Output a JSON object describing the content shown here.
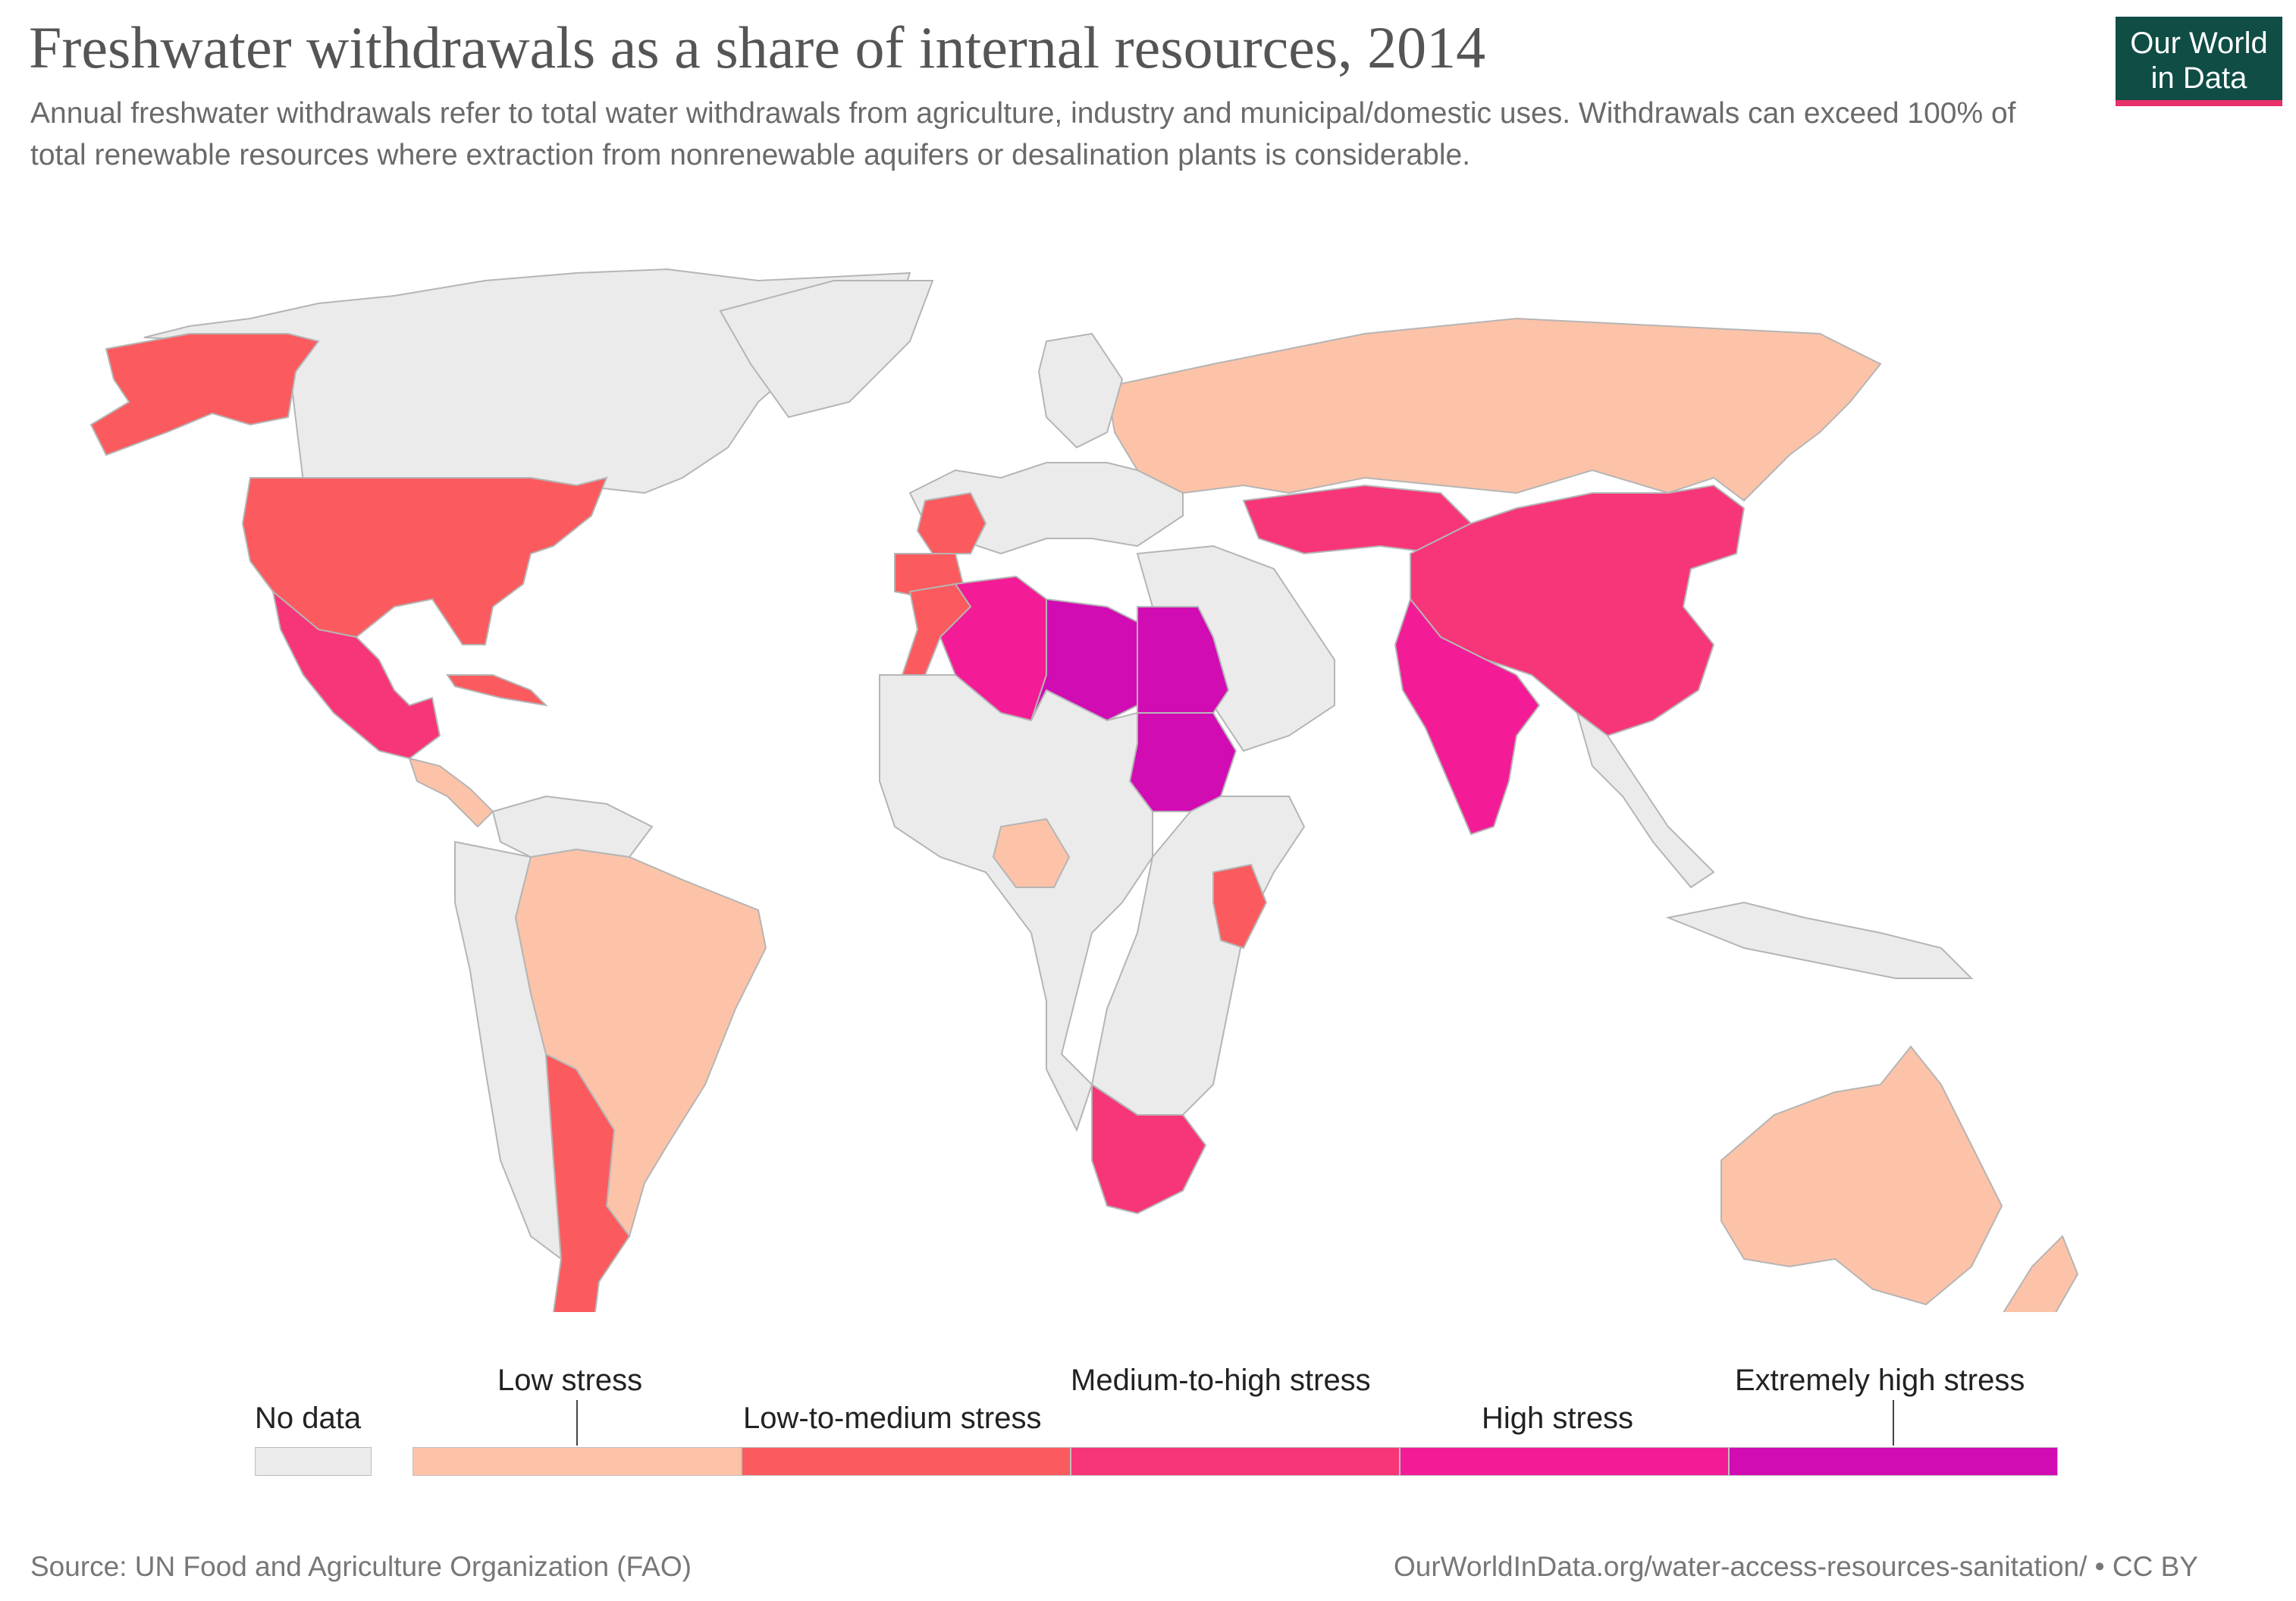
{
  "header": {
    "title": "Freshwater withdrawals as a share of internal resources, 2014",
    "subtitle": "Annual freshwater withdrawals refer to total water withdrawals from agriculture, industry and municipal/domestic uses. Withdrawals can exceed 100% of total renewable resources where extraction from nonrenewable aquifers or desalination plants is considerable.",
    "logo_line1": "Our World",
    "logo_line2": "in Data"
  },
  "colors": {
    "no_data": "#ebebeb",
    "low": "#fcc3a8",
    "low_to_medium": "#fb5b5e",
    "medium_to_high": "#f7367a",
    "high": "#f31c96",
    "extremely_high": "#d10cb3",
    "border": "#b5b5b5",
    "ocean": "#ffffff"
  },
  "legend": {
    "no_data": "No data",
    "bins": [
      {
        "label": "Low stress",
        "color": "#fcc3a8"
      },
      {
        "label": "Low-to-medium stress",
        "color": "#fb5b5e"
      },
      {
        "label": "Medium-to-high stress",
        "color": "#f7367a"
      },
      {
        "label": "High stress",
        "color": "#f31c96"
      },
      {
        "label": "Extremely high stress",
        "color": "#d10cb3"
      }
    ]
  },
  "regions": [
    {
      "name": "Canada/Greenland",
      "category": "no_data"
    },
    {
      "name": "Alaska",
      "category": "low_to_medium"
    },
    {
      "name": "United States",
      "category": "low_to_medium"
    },
    {
      "name": "Mexico",
      "category": "medium_to_high"
    },
    {
      "name": "Cuba",
      "category": "low_to_medium"
    },
    {
      "name": "Central America",
      "category": "low"
    },
    {
      "name": "Brazil",
      "category": "low"
    },
    {
      "name": "Argentina",
      "category": "low_to_medium"
    },
    {
      "name": "Chile",
      "category": "low_to_medium"
    },
    {
      "name": "Russia",
      "category": "low"
    },
    {
      "name": "China",
      "category": "medium_to_high"
    },
    {
      "name": "Kazakhstan",
      "category": "medium_to_high"
    },
    {
      "name": "India",
      "category": "high"
    },
    {
      "name": "Algeria",
      "category": "high"
    },
    {
      "name": "Libya",
      "category": "extremely_high"
    },
    {
      "name": "Egypt",
      "category": "extremely_high"
    },
    {
      "name": "Sudan",
      "category": "extremely_high"
    },
    {
      "name": "Morocco",
      "category": "low_to_medium"
    },
    {
      "name": "Spain",
      "category": "low_to_medium"
    },
    {
      "name": "France",
      "category": "low_to_medium"
    },
    {
      "name": "Kenya",
      "category": "low_to_medium"
    },
    {
      "name": "Nigeria",
      "category": "low"
    },
    {
      "name": "South Africa",
      "category": "medium_to_high"
    },
    {
      "name": "Australia",
      "category": "low"
    },
    {
      "name": "New Zealand",
      "category": "low"
    }
  ],
  "footer": {
    "source": "Source: UN Food and Agriculture Organization (FAO)",
    "url": "OurWorldInData.org/water-access-resources-sanitation/ • CC BY"
  }
}
